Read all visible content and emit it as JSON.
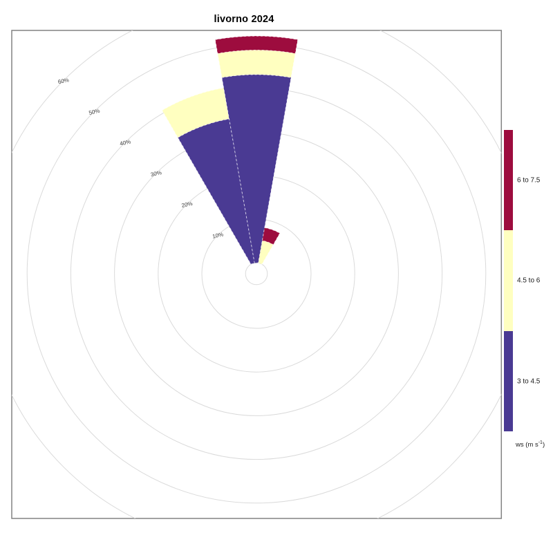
{
  "title": "livorno 2024",
  "chart_data": {
    "type": "bar",
    "subtype": "polar-wind-rose-stacked",
    "title": "livorno 2024",
    "radial_axis": {
      "unit": "%",
      "tick_values_pct": [
        10,
        20,
        30,
        40,
        50,
        60
      ],
      "tick_label_suffix": "%",
      "tick_label_angle_compass_deg": 315,
      "max_pct": 60,
      "grid": true
    },
    "sector_width_deg": 20,
    "bins": [
      {
        "label": "3 to 4.5",
        "color": "#4A3A93"
      },
      {
        "label": "4.5 to 6",
        "color": "#FFFFC0"
      },
      {
        "label": "6 to 7.5",
        "color": "#9D0C3E"
      }
    ],
    "series": [
      {
        "direction_compass_deg": 340,
        "segments": [
          {
            "bin": "3 to 4.5",
            "from_pct": 0,
            "to_pct": 33.5
          },
          {
            "bin": "4.5 to 6",
            "from_pct": 33.5,
            "to_pct": 40.7
          }
        ]
      },
      {
        "direction_compass_deg": 0,
        "segments": [
          {
            "bin": "3 to 4.5",
            "from_pct": 0,
            "to_pct": 43.1
          },
          {
            "bin": "4.5 to 6",
            "from_pct": 43.1,
            "to_pct": 48.7
          },
          {
            "bin": "6 to 7.5",
            "from_pct": 48.7,
            "to_pct": 51.9
          }
        ]
      },
      {
        "direction_compass_deg": 20,
        "segments": [
          {
            "bin": "4.5 to 6",
            "from_pct": 0,
            "to_pct": 5.2
          },
          {
            "bin": "6 to 7.5",
            "from_pct": 5.2,
            "to_pct": 8.2
          }
        ]
      }
    ],
    "legend_position": "right"
  },
  "legend": {
    "entries": [
      {
        "label": "6 to 7.5",
        "color": "#9D0C3E"
      },
      {
        "label": "4.5 to 6",
        "color": "#FFFFC0"
      },
      {
        "label": "3 to 4.5",
        "color": "#4A3A93"
      }
    ],
    "title": {
      "pre": "ws (m s",
      "sup": "-1",
      "post": ")"
    }
  },
  "colors": {
    "grid_ring": "#DADADA",
    "plot_border": "#828282",
    "tick_label": "#3D3D3D",
    "wedge_border": "rgba(255,255,255,0.6)",
    "background": "#FFFFFF"
  }
}
